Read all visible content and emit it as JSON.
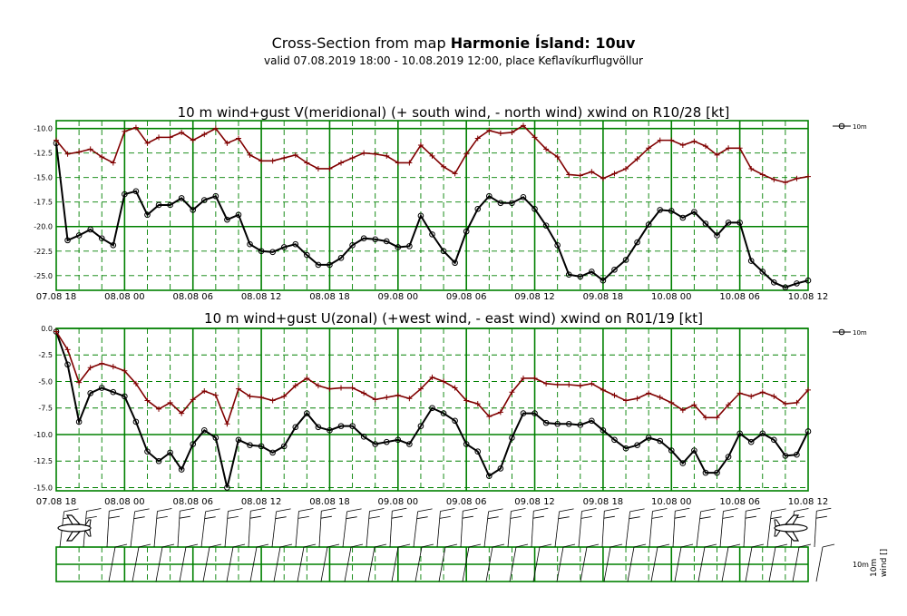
{
  "header": {
    "title_prefix": "Cross-Section from map ",
    "title_bold": "Harmonie Ísland: 10uv",
    "subtitle": "valid 07.08.2019 18:00 - 10.08.2019 12:00, place Keflavíkurflugvöllur"
  },
  "colors": {
    "frame": "#008000",
    "gust": "#800000",
    "wind": "#000000"
  },
  "bottom_panel": {
    "label_level": "10m",
    "label_param": "wind []",
    "icons": [
      "airplane-left",
      "airplane-right"
    ]
  },
  "chart_data": [
    {
      "type": "line",
      "title": "10 m wind+gust V(meridional) (+ south wind, - north wind) xwind on R10/28 [kt]",
      "ylim": [
        -26.5,
        -9.2
      ],
      "yticks": [
        -10.0,
        -12.5,
        -15.0,
        -17.5,
        -20.0,
        -22.5,
        -25.0
      ],
      "ytick_labels": [
        "-10.0",
        "-12.5",
        "-15.0",
        "-17.5",
        "-20.0",
        "-22.5",
        "-25.0"
      ],
      "xtick_labels": [
        "07.08 18",
        "08.08 00",
        "08.08 06",
        "08.08 12",
        "08.08 18",
        "09.08 00",
        "09.08 06",
        "09.08 12",
        "09.08 18",
        "10.08 00",
        "10.08 06",
        "10.08 12"
      ],
      "x_step_hours": 1,
      "grid": true,
      "legend": "top-right",
      "legend_label": "10m",
      "series": [
        {
          "name": "10m",
          "values": [
            -11.5,
            -21.4,
            -20.9,
            -20.3,
            -21.2,
            -21.9,
            -16.7,
            -16.4,
            -18.8,
            -17.8,
            -17.8,
            -17.1,
            -18.3,
            -17.3,
            -16.9,
            -19.3,
            -18.8,
            -21.8,
            -22.5,
            -22.6,
            -22.1,
            -21.8,
            -22.9,
            -23.9,
            -23.9,
            -23.2,
            -21.9,
            -21.2,
            -21.3,
            -21.5,
            -22.1,
            -22.0,
            -18.9,
            -20.8,
            -22.5,
            -23.7,
            -20.5,
            -18.2,
            -16.9,
            -17.6,
            -17.6,
            -17.0,
            -18.2,
            -19.9,
            -21.9,
            -24.9,
            -25.1,
            -24.6,
            -25.5,
            -24.4,
            -23.4,
            -21.6,
            -19.8,
            -18.3,
            -18.4,
            -19.1,
            -18.5,
            -19.7,
            -20.9,
            -19.6,
            -19.6,
            -23.5,
            -24.6,
            -25.7,
            -26.2,
            -25.8,
            -25.5
          ]
        },
        {
          "name": "",
          "values": [
            -11.2,
            -12.6,
            -12.4,
            -12.1,
            -12.9,
            -13.5,
            -10.3,
            -9.9,
            -11.5,
            -10.9,
            -10.9,
            -10.4,
            -11.2,
            -10.6,
            -10.0,
            -11.5,
            -11.0,
            -12.7,
            -13.3,
            -13.3,
            -13.0,
            -12.7,
            -13.5,
            -14.1,
            -14.1,
            -13.5,
            -13.0,
            -12.5,
            -12.6,
            -12.8,
            -13.5,
            -13.5,
            -11.7,
            -12.8,
            -13.9,
            -14.6,
            -12.6,
            -11.0,
            -10.2,
            -10.5,
            -10.4,
            -9.7,
            -10.9,
            -12.1,
            -12.9,
            -14.7,
            -14.8,
            -14.4,
            -15.1,
            -14.6,
            -14.1,
            -13.1,
            -12.0,
            -11.2,
            -11.2,
            -11.7,
            -11.3,
            -11.8,
            -12.7,
            -12.0,
            -12.0,
            -14.1,
            -14.7,
            -15.2,
            -15.5,
            -15.1,
            -14.9
          ]
        }
      ]
    },
    {
      "type": "line",
      "title": "10 m wind+gust U(zonal) (+west wind, - east wind) xwind on R01/19 [kt]",
      "ylim": [
        -15.3,
        0.0
      ],
      "yticks": [
        0.0,
        -2.5,
        -5.0,
        -7.5,
        -10.0,
        -12.5,
        -15.0
      ],
      "ytick_labels": [
        "0.0",
        "-2.5",
        "-5.0",
        "-7.5",
        "-10.0",
        "-12.5",
        "-15.0"
      ],
      "xtick_labels": [
        "07.08 18",
        "08.08 00",
        "08.08 06",
        "08.08 12",
        "08.08 18",
        "09.08 00",
        "09.08 06",
        "09.08 12",
        "09.08 18",
        "10.08 00",
        "10.08 06",
        "10.08 12"
      ],
      "x_step_hours": 1,
      "grid": true,
      "legend": "top-right",
      "legend_label": "10m",
      "series": [
        {
          "name": "10m",
          "values": [
            -0.3,
            -3.4,
            -8.8,
            -6.1,
            -5.6,
            -6.0,
            -6.4,
            -8.8,
            -11.6,
            -12.5,
            -11.7,
            -13.3,
            -10.9,
            -9.6,
            -10.3,
            -15.0,
            -10.5,
            -11.0,
            -11.1,
            -11.7,
            -11.1,
            -9.3,
            -8.0,
            -9.3,
            -9.6,
            -9.2,
            -9.2,
            -10.2,
            -10.9,
            -10.7,
            -10.5,
            -10.9,
            -9.2,
            -7.5,
            -8.0,
            -8.7,
            -10.9,
            -11.6,
            -13.9,
            -13.2,
            -10.3,
            -8.0,
            -8.0,
            -8.9,
            -9.0,
            -9.0,
            -9.1,
            -8.7,
            -9.6,
            -10.5,
            -11.3,
            -11.0,
            -10.3,
            -10.6,
            -11.5,
            -12.7,
            -11.5,
            -13.6,
            -13.6,
            -12.1,
            -9.9,
            -10.7,
            -9.9,
            -10.5,
            -12.0,
            -11.9,
            -9.7
          ]
        },
        {
          "name": "",
          "values": [
            -0.3,
            -2.0,
            -5.1,
            -3.7,
            -3.3,
            -3.6,
            -4.0,
            -5.2,
            -6.8,
            -7.6,
            -7.0,
            -8.0,
            -6.7,
            -5.9,
            -6.3,
            -9.0,
            -5.7,
            -6.4,
            -6.5,
            -6.8,
            -6.4,
            -5.4,
            -4.7,
            -5.4,
            -5.7,
            -5.6,
            -5.6,
            -6.1,
            -6.7,
            -6.5,
            -6.3,
            -6.6,
            -5.7,
            -4.6,
            -5.0,
            -5.6,
            -6.8,
            -7.1,
            -8.3,
            -7.9,
            -6.0,
            -4.7,
            -4.7,
            -5.2,
            -5.3,
            -5.3,
            -5.4,
            -5.2,
            -5.8,
            -6.3,
            -6.8,
            -6.6,
            -6.1,
            -6.5,
            -7.0,
            -7.7,
            -7.2,
            -8.4,
            -8.4,
            -7.2,
            -6.1,
            -6.4,
            -6.0,
            -6.4,
            -7.1,
            -7.0,
            -5.8
          ]
        }
      ]
    }
  ]
}
